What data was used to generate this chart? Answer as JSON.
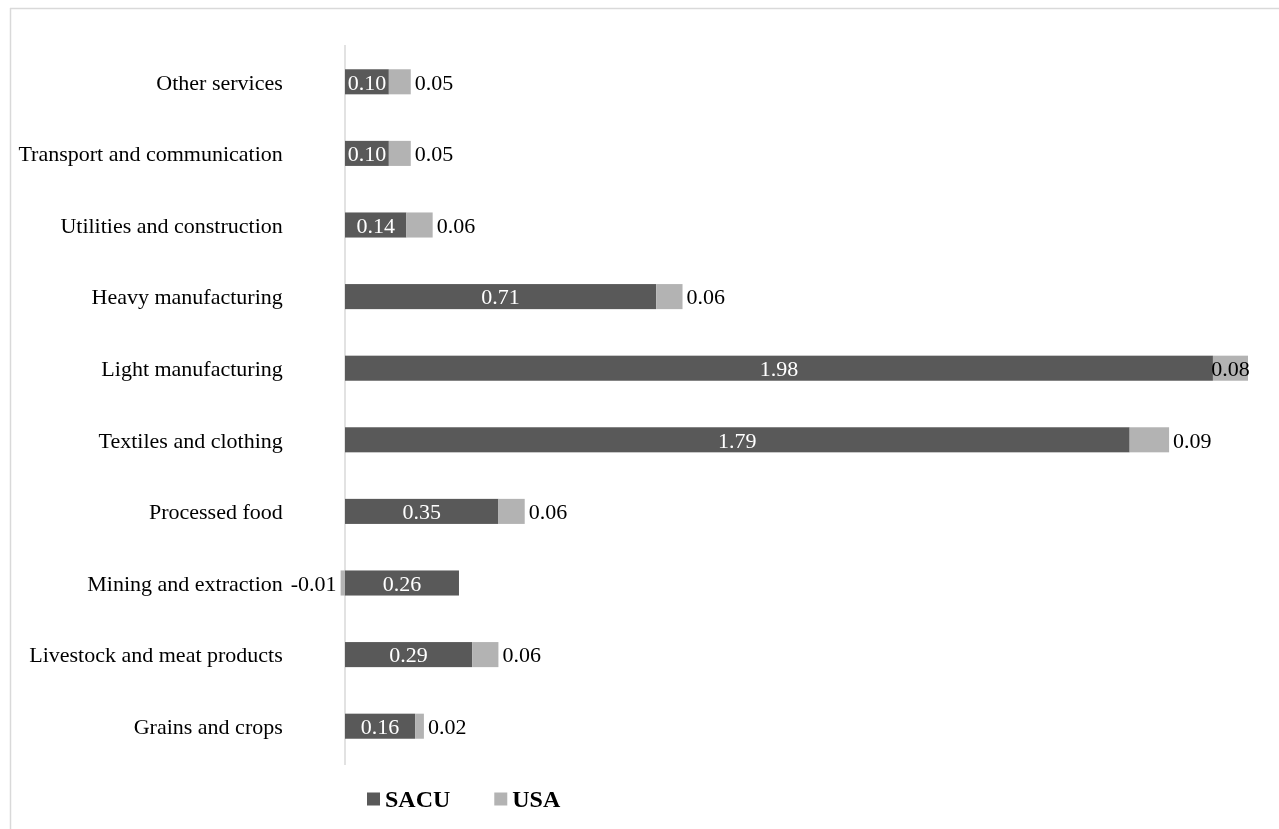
{
  "chart_data": {
    "type": "bar",
    "orientation": "horizontal",
    "stacked": true,
    "categories": [
      "Other services",
      "Transport and communication",
      "Utilities and construction",
      "Heavy manufacturing",
      "Light manufacturing",
      "Textiles and clothing",
      "Processed food",
      "Mining and extraction",
      "Livestock and meat products",
      "Grains and crops"
    ],
    "series": [
      {
        "name": "SACU",
        "color": "#595959",
        "values": [
          0.1,
          0.1,
          0.14,
          0.71,
          1.98,
          1.79,
          0.35,
          0.26,
          0.29,
          0.16
        ],
        "value_labels": [
          "0.10",
          "0.10",
          "0.14",
          "0.71",
          "1.98",
          "1.79",
          "0.35",
          "0.26",
          "0.29",
          "0.16"
        ]
      },
      {
        "name": "USA",
        "color": "#b3b3b3",
        "values": [
          0.05,
          0.05,
          0.06,
          0.06,
          0.08,
          0.09,
          0.06,
          -0.01,
          0.06,
          0.02
        ],
        "value_labels": [
          "0.05",
          "0.05",
          "0.06",
          "0.06",
          "0.08",
          "0.09",
          "0.06",
          "-0.01",
          "0.06",
          "0.02"
        ]
      }
    ],
    "legend": "bottom"
  }
}
